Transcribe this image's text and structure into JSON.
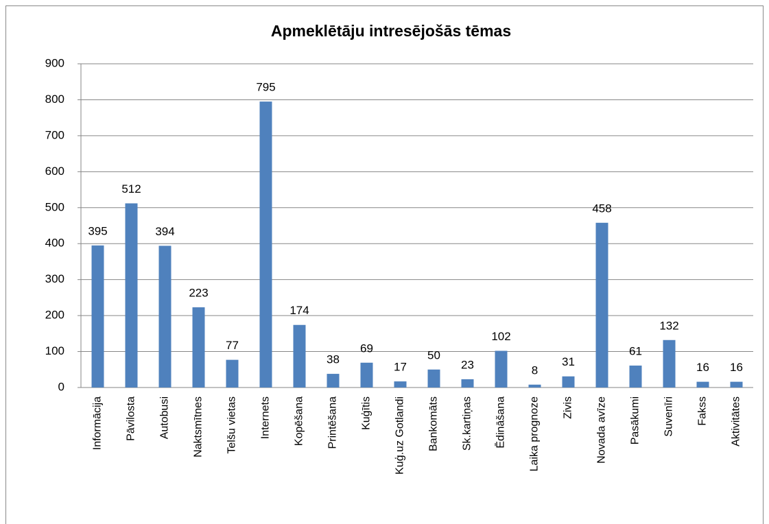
{
  "chart_data": {
    "type": "bar",
    "title": "Apmeklētāju intresējošās tēmas",
    "categories": [
      "Informācija",
      "Pāvilosta",
      "Autobusi",
      "Naktsmītnes",
      "Telšu vietas",
      "Internets",
      "Kopēšana",
      "Printēšana",
      "Kuģītis",
      "Kuģ.uz Gotlandi",
      "Bankomāts",
      "Sk.kartiņas",
      "Ēdināšana",
      "Laika prognoze",
      "Zivis",
      "Novada avīze",
      "Pasākumi",
      "Suvenīri",
      "Fakss",
      "Aktivitātes"
    ],
    "values": [
      395,
      512,
      394,
      223,
      77,
      795,
      174,
      38,
      69,
      17,
      50,
      23,
      102,
      8,
      31,
      458,
      61,
      132,
      16,
      16
    ],
    "color": "#4f81bd",
    "ylim": [
      0,
      900
    ],
    "yticks": [
      0,
      100,
      200,
      300,
      400,
      500,
      600,
      700,
      800,
      900
    ],
    "grid": true
  }
}
